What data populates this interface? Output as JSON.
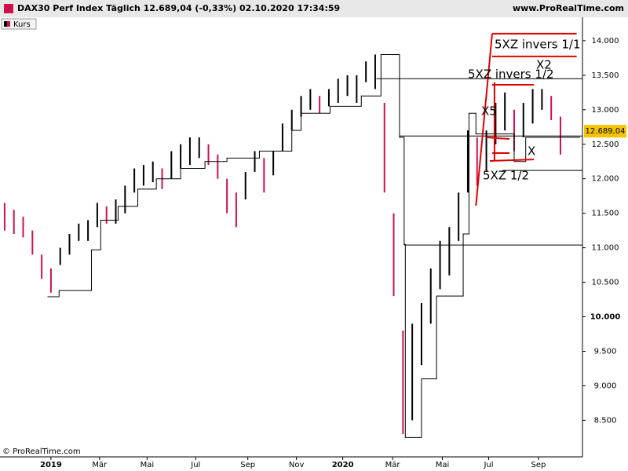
{
  "header": {
    "title": "DAX30 Perf Index Täglich 12.689,04 (-0,33%) 02.10.2020 17:34:59",
    "site": "www.ProRealTime.com"
  },
  "footer": {
    "copyright": "© ProRealTime.com"
  },
  "chart_data": {
    "type": "bar",
    "xlim": [
      -44,
      459
    ],
    "ylim": [
      7970,
      14340
    ],
    "xticks": [
      {
        "value": 0,
        "label": "2019"
      },
      {
        "value": 42,
        "label": "Mär"
      },
      {
        "value": 83,
        "label": "Mai"
      },
      {
        "value": 125,
        "label": "Jul"
      },
      {
        "value": 170,
        "label": "Sep"
      },
      {
        "value": 212,
        "label": "Nov"
      },
      {
        "value": 252,
        "label": "2020"
      },
      {
        "value": 295,
        "label": "Mär"
      },
      {
        "value": 338,
        "label": "Mai"
      },
      {
        "value": 378,
        "label": "Jul"
      },
      {
        "value": 421,
        "label": "Sep"
      }
    ],
    "yticks": [
      {
        "value": 8500,
        "label": "8.500"
      },
      {
        "value": 9000,
        "label": "9.000"
      },
      {
        "value": 9500,
        "label": "9.500"
      },
      {
        "value": 10000,
        "label": "10.000"
      },
      {
        "value": 10500,
        "label": "10.500"
      },
      {
        "value": 11000,
        "label": "11.000"
      },
      {
        "value": 11500,
        "label": "11.500"
      },
      {
        "value": 12000,
        "label": "12.000"
      },
      {
        "value": 12500,
        "label": "12.500"
      },
      {
        "value": 13000,
        "label": "13.000"
      },
      {
        "value": 13500,
        "label": "13.500"
      },
      {
        "value": 14000,
        "label": "14.000"
      }
    ],
    "last": {
      "value": 12689.04,
      "label": "12.689,04"
    },
    "series": [
      {
        "name": "Kurs",
        "colors": [
          "#d0104c",
          "#000000"
        ],
        "x": [
          -40,
          -32,
          -24,
          -16,
          -8,
          0,
          8,
          16,
          24,
          32,
          40,
          48,
          56,
          64,
          72,
          80,
          88,
          96,
          104,
          112,
          120,
          128,
          136,
          144,
          152,
          160,
          168,
          176,
          184,
          192,
          200,
          208,
          216,
          224,
          232,
          240,
          248,
          256,
          264,
          272,
          280,
          288,
          296,
          304,
          312,
          320,
          328,
          336,
          344,
          352,
          360,
          368,
          376,
          384,
          392,
          400,
          408,
          416,
          424,
          432,
          440
        ],
        "high": [
          11650,
          11550,
          11450,
          11250,
          10900,
          10700,
          11000,
          11200,
          11350,
          11400,
          11650,
          11600,
          11700,
          11900,
          12150,
          12200,
          12250,
          12150,
          12400,
          12500,
          12600,
          12600,
          12500,
          12350,
          12000,
          11800,
          12100,
          12400,
          12300,
          12400,
          12800,
          13000,
          13200,
          13300,
          13200,
          13300,
          13450,
          13500,
          13500,
          13700,
          13800,
          13100,
          11500,
          9800,
          9900,
          10200,
          10700,
          11100,
          11300,
          11800,
          12700,
          12600,
          12700,
          13100,
          13250,
          13000,
          13100,
          13300,
          13300,
          13200,
          12900
        ],
        "low": [
          11250,
          11200,
          11150,
          10900,
          10550,
          10350,
          10750,
          10900,
          11100,
          11100,
          11300,
          11350,
          11350,
          11500,
          11800,
          11900,
          11950,
          11850,
          12000,
          12150,
          12200,
          12300,
          12200,
          12000,
          11500,
          11300,
          11700,
          12100,
          11800,
          12050,
          12400,
          12700,
          12900,
          13000,
          12950,
          13050,
          13100,
          13200,
          13100,
          13400,
          13300,
          11800,
          10300,
          8300,
          8500,
          9300,
          9900,
          10400,
          10600,
          11100,
          11800,
          11900,
          12100,
          12500,
          12700,
          12400,
          12600,
          12800,
          13000,
          12850,
          12350
        ]
      },
      {
        "x": [
          -3,
          7,
          35,
          43,
          58,
          75,
          91,
          112,
          133,
          152,
          180,
          208,
          216,
          241,
          268,
          285,
          301,
          305,
          306,
          320,
          333,
          356,
          361,
          367,
          390,
          400,
          410,
          457
        ],
        "values": [
          10290,
          10380,
          10970,
          11400,
          11600,
          11850,
          12000,
          12150,
          12250,
          12300,
          12400,
          12700,
          12950,
          13050,
          13200,
          13800,
          12600,
          11050,
          8250,
          9100,
          10300,
          11200,
          12950,
          12650,
          12650,
          12250,
          12600,
          12600
        ]
      }
    ],
    "levels": [
      {
        "x": 281,
        "value": 13450
      },
      {
        "x": 301,
        "value": 12620
      },
      {
        "x": 390,
        "value": 12120
      },
      {
        "x": 305,
        "value": 11040
      }
    ],
    "red_lines": [
      [
        367,
        11609,
        381,
        14102
      ],
      [
        381,
        14102,
        454,
        14102
      ],
      [
        381,
        13772,
        454,
        13772
      ],
      [
        381,
        13362,
        417,
        13362
      ],
      [
        383,
        13396,
        383,
        12258
      ],
      [
        376,
        12599,
        396,
        12577
      ],
      [
        381,
        12372,
        396,
        12372
      ],
      [
        379,
        12258,
        417,
        12280
      ]
    ],
    "annotations": [
      "5XZ invers 1/1",
      "5XZ invers 1/2",
      "X2",
      "X5",
      "X",
      "5XZ 1/2"
    ]
  }
}
